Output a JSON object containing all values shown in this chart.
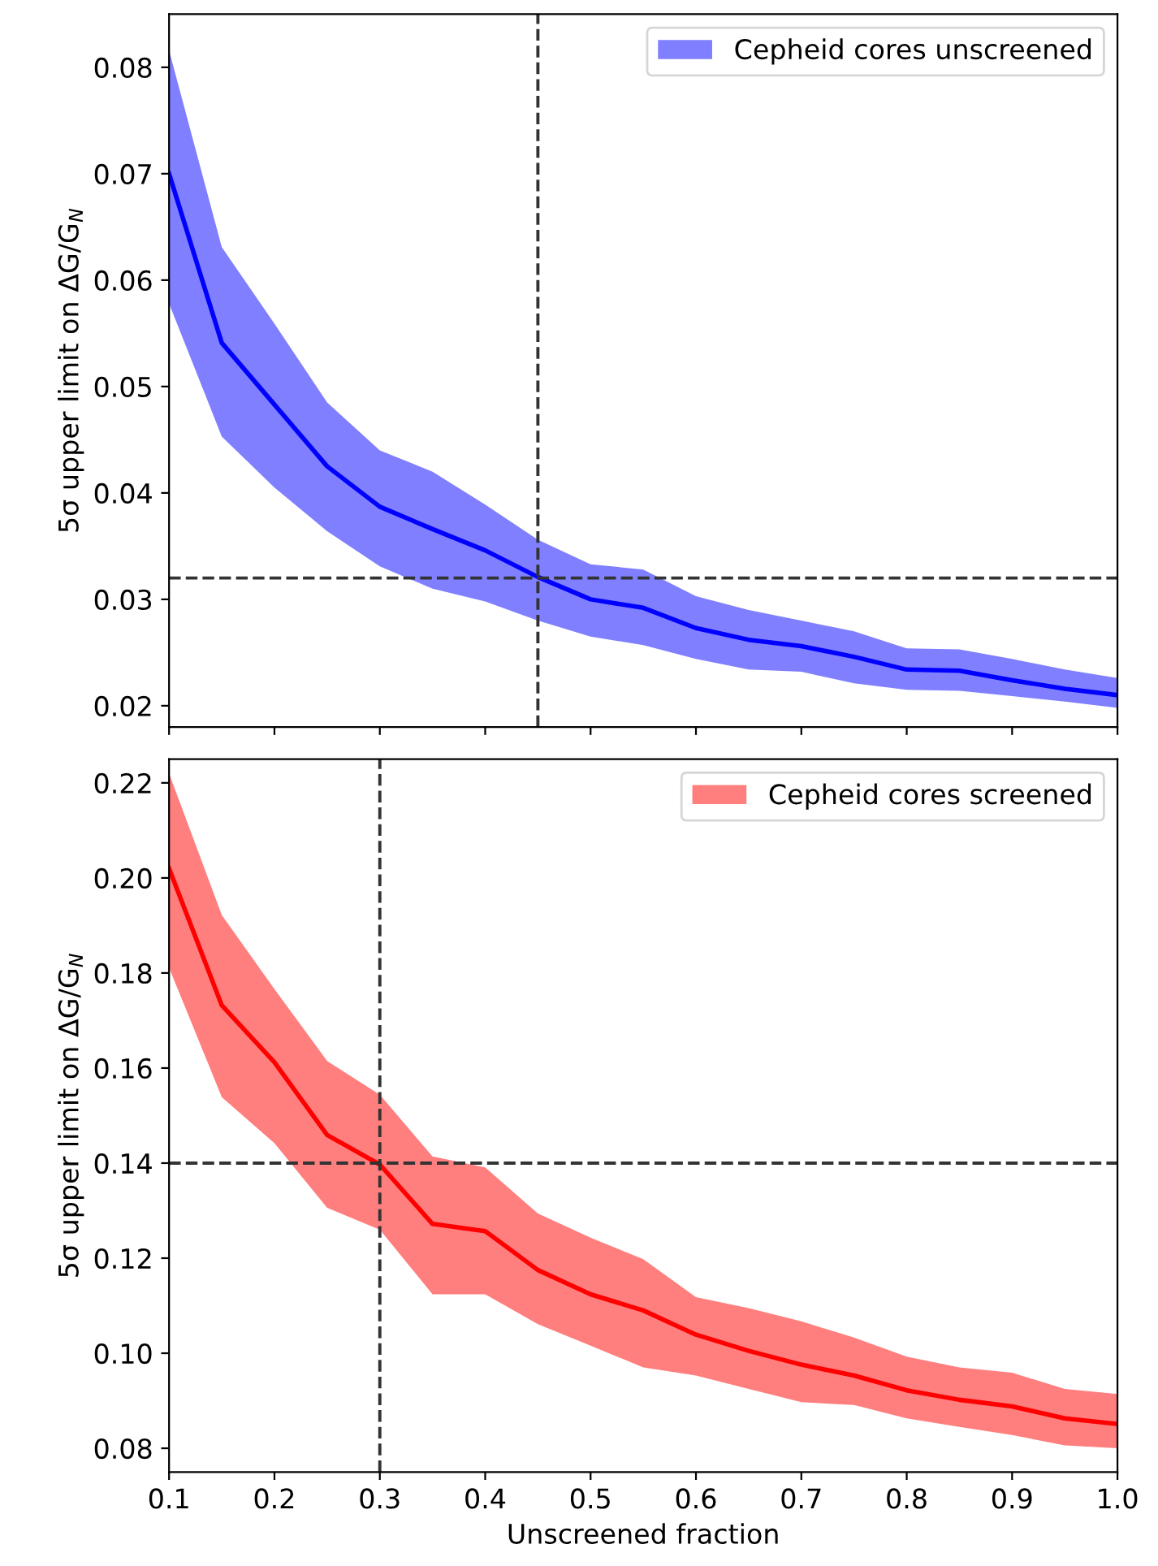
{
  "chart_data": [
    {
      "type": "line",
      "ylabel": "5σ upper limit on ΔG/G$_{N}$",
      "x": [
        0.1,
        0.15,
        0.2,
        0.25,
        0.3,
        0.35,
        0.4,
        0.45,
        0.5,
        0.55,
        0.6,
        0.65,
        0.7,
        0.75,
        0.8,
        0.85,
        0.9,
        0.95,
        1.0
      ],
      "series": [
        {
          "name": "Cepheid cores unscreened",
          "color": "#0000ff",
          "values": [
            0.07,
            0.0541,
            0.0483,
            0.0425,
            0.0387,
            0.0366,
            0.0346,
            0.0321,
            0.03,
            0.0292,
            0.0273,
            0.0262,
            0.0256,
            0.0246,
            0.0234,
            0.0233,
            0.0224,
            0.0216,
            0.021
          ],
          "upper": [
            0.0816,
            0.0631,
            0.0559,
            0.0485,
            0.044,
            0.042,
            0.0389,
            0.0356,
            0.0333,
            0.0328,
            0.0303,
            0.029,
            0.028,
            0.027,
            0.0254,
            0.0253,
            0.0244,
            0.0234,
            0.0226
          ],
          "lower": [
            0.0578,
            0.0453,
            0.0405,
            0.0364,
            0.0331,
            0.031,
            0.0298,
            0.028,
            0.0265,
            0.0257,
            0.0244,
            0.0234,
            0.0232,
            0.0221,
            0.0215,
            0.0214,
            0.0209,
            0.0204,
            0.0198
          ]
        }
      ],
      "xlim": [
        0.1,
        1.0
      ],
      "xticks": [
        0.1,
        0.2,
        0.3,
        0.4,
        0.5,
        0.6,
        0.7,
        0.8,
        0.9,
        1.0
      ],
      "ylim": [
        0.018,
        0.085
      ],
      "yticks": [
        0.02,
        0.03,
        0.04,
        0.05,
        0.06,
        0.07,
        0.08
      ],
      "ref_lines": [
        {
          "axis": "y",
          "value": 0.032,
          "color": "#333333",
          "line_style": "dashed"
        },
        {
          "axis": "x",
          "value": 0.45,
          "color": "#333333",
          "line_style": "dashed"
        }
      ],
      "legend": "top right",
      "grid": false,
      "tick_labels": "y"
    },
    {
      "type": "line",
      "xlabel": "Unscreened fraction",
      "ylabel": "5σ upper limit on ΔG/G$_{N}$",
      "x": [
        0.1,
        0.15,
        0.2,
        0.25,
        0.3,
        0.35,
        0.4,
        0.45,
        0.5,
        0.55,
        0.6,
        0.65,
        0.7,
        0.75,
        0.8,
        0.85,
        0.9,
        0.95,
        1.0
      ],
      "series": [
        {
          "name": "Cepheid cores screened",
          "color": "#ff0000",
          "values": [
            0.202,
            0.1732,
            0.1612,
            0.1459,
            0.1397,
            0.1272,
            0.1257,
            0.1175,
            0.1124,
            0.109,
            0.1039,
            0.1005,
            0.0976,
            0.0953,
            0.0922,
            0.0902,
            0.0888,
            0.0863,
            0.0851
          ],
          "upper": [
            0.222,
            0.1922,
            0.1766,
            0.1615,
            0.1544,
            0.1414,
            0.1391,
            0.1294,
            0.1243,
            0.1198,
            0.1118,
            0.1095,
            0.1067,
            0.1033,
            0.0993,
            0.097,
            0.0959,
            0.0925,
            0.0914
          ],
          "lower": [
            0.1811,
            0.1539,
            0.1442,
            0.1306,
            0.126,
            0.1124,
            0.1124,
            0.1061,
            0.1016,
            0.097,
            0.0953,
            0.0925,
            0.0897,
            0.0891,
            0.0863,
            0.0845,
            0.0828,
            0.0806,
            0.08
          ]
        }
      ],
      "xlim": [
        0.1,
        1.0
      ],
      "xticks": [
        0.1,
        0.2,
        0.3,
        0.4,
        0.5,
        0.6,
        0.7,
        0.8,
        0.9,
        {
          "value": 1.0,
          "label": "1.0"
        }
      ],
      "ylim": [
        0.075,
        0.225
      ],
      "yticks": [
        0.08,
        {
          "value": 0.1,
          "label": "0.10"
        },
        0.12,
        0.14,
        0.16,
        0.18,
        {
          "value": 0.2,
          "label": "0.20"
        },
        0.22
      ],
      "ref_lines": [
        {
          "axis": "y",
          "value": 0.14,
          "color": "#333333",
          "line_style": "dashed"
        },
        {
          "axis": "x",
          "value": 0.3,
          "color": "#333333",
          "line_style": "dashed"
        }
      ],
      "legend": "top right",
      "grid": false
    }
  ]
}
